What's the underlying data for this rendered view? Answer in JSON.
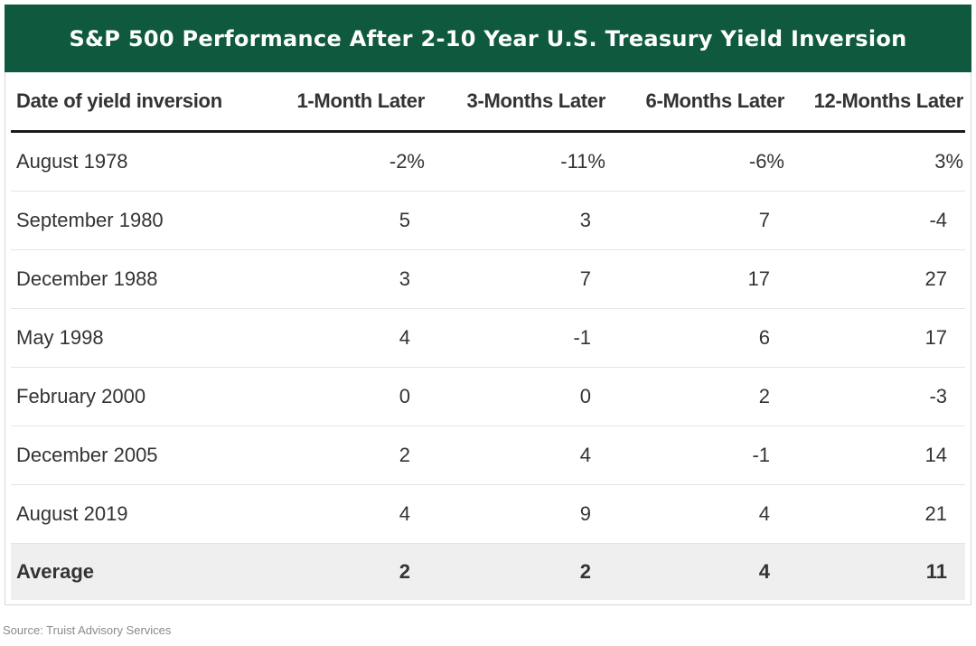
{
  "chart_data": {
    "type": "table",
    "title": "S&P 500 Performance After 2-10 Year U.S. Treasury Yield Inversion",
    "columns": [
      "Date of yield inversion",
      "1-Month Later",
      "3-Months Later",
      "6-Months Later",
      "12-Months Later"
    ],
    "rows": [
      {
        "date": "August 1978",
        "values": [
          "-2%",
          "-11%",
          "-6%",
          "3%"
        ]
      },
      {
        "date": "September 1980",
        "values": [
          "5",
          "3",
          "7",
          "-4"
        ]
      },
      {
        "date": "December 1988",
        "values": [
          "3",
          "7",
          "17",
          "27"
        ]
      },
      {
        "date": "May 1998",
        "values": [
          "4",
          "-1",
          "6",
          "17"
        ]
      },
      {
        "date": "February 2000",
        "values": [
          "0",
          "0",
          "2",
          "-3"
        ]
      },
      {
        "date": "December 2005",
        "values": [
          "2",
          "4",
          "-1",
          "14"
        ]
      },
      {
        "date": "August 2019",
        "values": [
          "4",
          "9",
          "4",
          "21"
        ]
      }
    ],
    "average": {
      "label": "Average",
      "values": [
        "2",
        "2",
        "4",
        "11"
      ]
    }
  },
  "source": "Source: Truist Advisory Services",
  "colors": {
    "title_bar": "#0f5a3e",
    "average_row": "#efefef"
  }
}
